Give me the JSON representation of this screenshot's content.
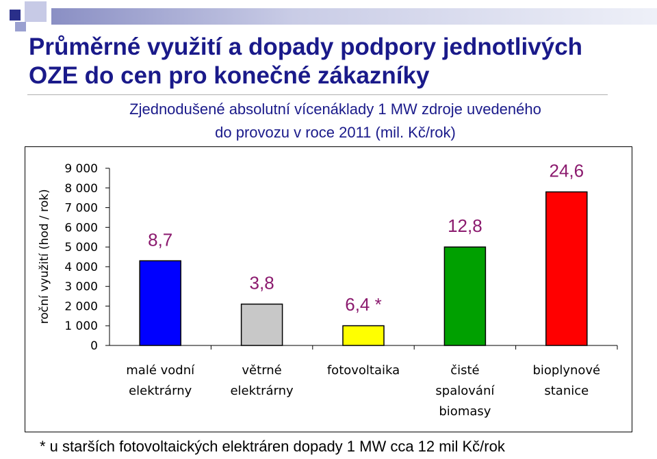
{
  "slide": {
    "title": "Průměrné využití a dopady podpory jednotlivých OZE do cen pro konečné zákazníky",
    "subtitle_line1": "Zjednodušené absolutní vícenáklady 1 MW zdroje uvedeného",
    "subtitle_line2": "do provozu v roce 2011 (mil. Kč/rok)",
    "footnote": "* u starších fotovoltaických elektráren dopady 1 MW cca 12 mil Kč/rok"
  },
  "chart_data": {
    "type": "bar",
    "ylabel": "roční využití (hod / rok)",
    "ylim": [
      0,
      9000
    ],
    "yticks": [
      0,
      1000,
      2000,
      3000,
      4000,
      5000,
      6000,
      7000,
      8000,
      9000
    ],
    "ytick_labels": [
      "0",
      "1 000",
      "2 000",
      "3 000",
      "4 000",
      "5 000",
      "6 000",
      "7 000",
      "8 000",
      "9 000"
    ],
    "grid": false,
    "legend": "none",
    "categories": [
      [
        "malé vodní",
        "elektrárny"
      ],
      [
        "větrné",
        "elektrárny"
      ],
      [
        "fotovoltaika"
      ],
      [
        "čisté",
        "spalování",
        "biomasy"
      ],
      [
        "bioplynové",
        "stanice"
      ]
    ],
    "values": [
      4300,
      2100,
      1000,
      5000,
      7800
    ],
    "data_labels": [
      "8,7",
      "3,8",
      "6,4 *",
      "12,8",
      "24,6"
    ],
    "colors": [
      "#0000ff",
      "#c8c8c8",
      "#ffff00",
      "#00a000",
      "#ff0000"
    ],
    "label_color": "#8b1a6e"
  }
}
